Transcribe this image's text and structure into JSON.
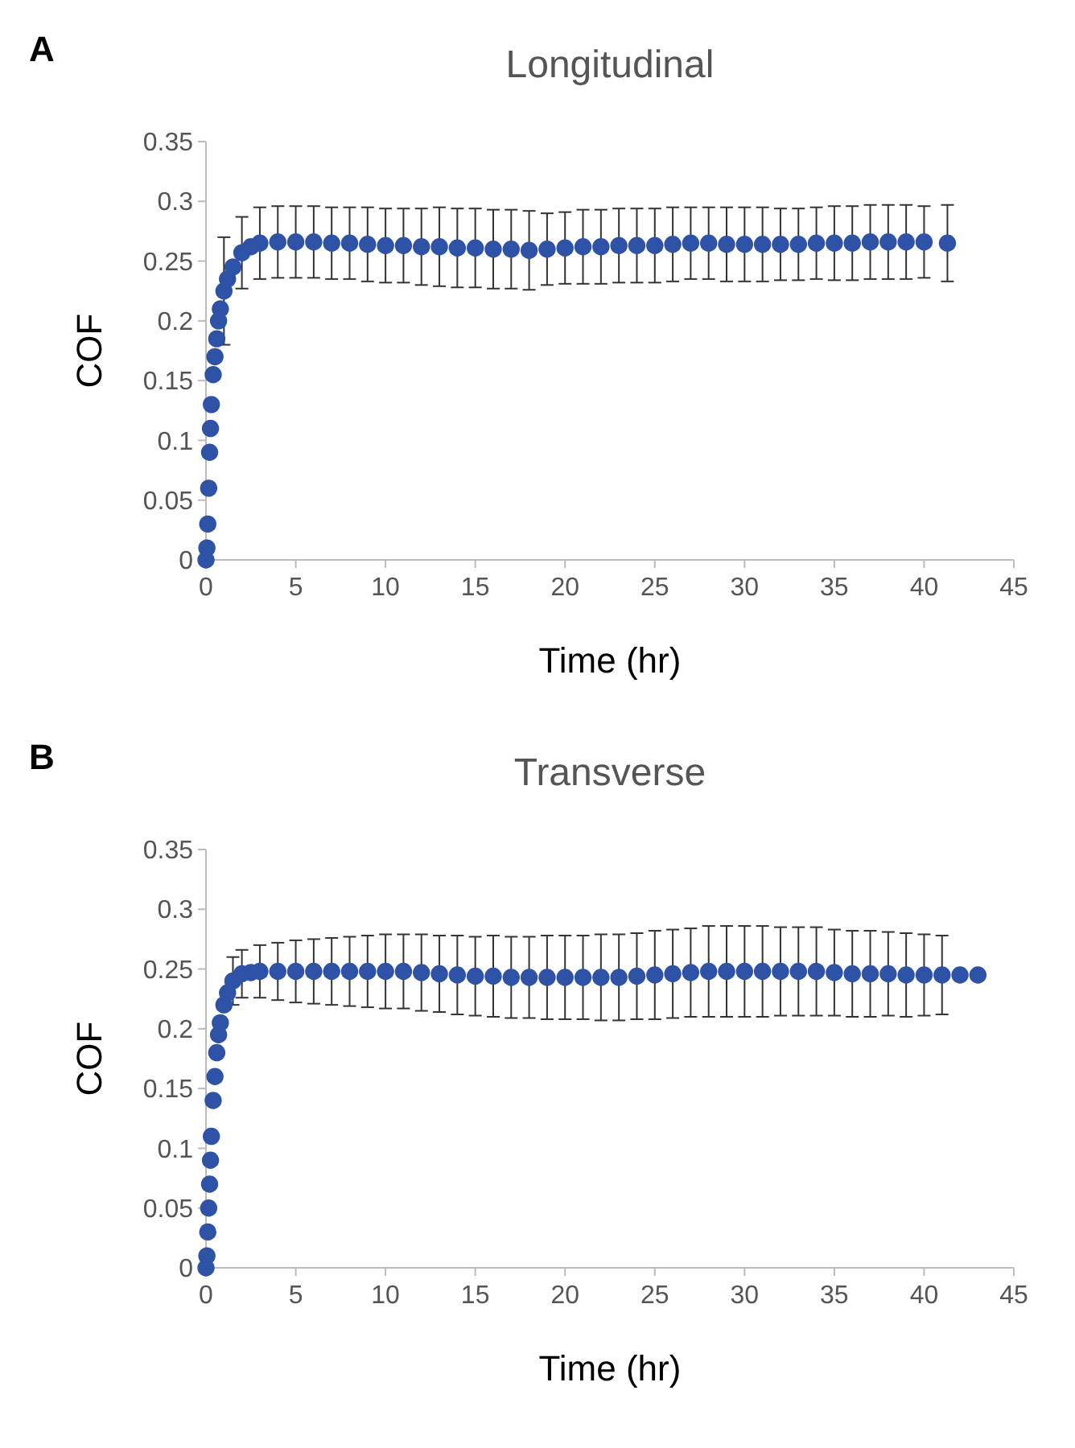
{
  "chart_data": [
    {
      "type": "scatter",
      "title": "Longitudinal",
      "xlabel": "Time (hr)",
      "ylabel": "COF",
      "annotations": [
        "A"
      ],
      "marker": "circle",
      "grid": false,
      "xlim": [
        0,
        45
      ],
      "ylim": [
        0,
        0.35
      ],
      "xticks": [
        0,
        5,
        10,
        15,
        20,
        25,
        30,
        35,
        40,
        45
      ],
      "yticks": [
        0,
        0.05,
        0.1,
        0.15,
        0.2,
        0.25,
        0.3,
        0.35
      ],
      "series": [
        {
          "color": "#2d52a6",
          "x": [
            0,
            0.05,
            0.1,
            0.15,
            0.2,
            0.25,
            0.3,
            0.4,
            0.5,
            0.6,
            0.7,
            0.8,
            1,
            1.2,
            1.5,
            2,
            2.5,
            3,
            4,
            5,
            6,
            7,
            8,
            9,
            10,
            11,
            12,
            13,
            14,
            15,
            16,
            17,
            18,
            19,
            20,
            21,
            22,
            23,
            24,
            25,
            26,
            27,
            28,
            29,
            30,
            31,
            32,
            33,
            34,
            35,
            36,
            37,
            38,
            39,
            40,
            41.3
          ],
          "values": [
            0,
            0.01,
            0.03,
            0.06,
            0.09,
            0.11,
            0.13,
            0.155,
            0.17,
            0.185,
            0.2,
            0.21,
            0.225,
            0.235,
            0.245,
            0.257,
            0.262,
            0.265,
            0.266,
            0.266,
            0.266,
            0.265,
            0.265,
            0.264,
            0.263,
            0.263,
            0.262,
            0.262,
            0.261,
            0.261,
            0.26,
            0.26,
            0.259,
            0.26,
            0.261,
            0.262,
            0.262,
            0.263,
            0.263,
            0.263,
            0.264,
            0.265,
            0.265,
            0.264,
            0.264,
            0.264,
            0.264,
            0.264,
            0.265,
            0.265,
            0.265,
            0.266,
            0.266,
            0.266,
            0.266,
            0.265
          ],
          "errors": [
            null,
            null,
            null,
            null,
            null,
            null,
            null,
            null,
            null,
            null,
            null,
            null,
            0.045,
            null,
            null,
            0.03,
            null,
            0.03,
            0.03,
            0.03,
            0.03,
            0.03,
            0.03,
            0.031,
            0.031,
            0.031,
            0.032,
            0.033,
            0.033,
            0.033,
            0.033,
            0.033,
            0.033,
            0.03,
            0.03,
            0.031,
            0.031,
            0.031,
            0.031,
            0.031,
            0.031,
            0.03,
            0.03,
            0.031,
            0.031,
            0.031,
            0.03,
            0.03,
            0.03,
            0.031,
            0.031,
            0.031,
            0.031,
            0.031,
            0.03,
            0.032
          ]
        }
      ]
    },
    {
      "type": "scatter",
      "title": "Transverse",
      "xlabel": "Time (hr)",
      "ylabel": "COF",
      "annotations": [
        "B"
      ],
      "marker": "circle",
      "grid": false,
      "xlim": [
        0,
        45
      ],
      "ylim": [
        0,
        0.35
      ],
      "xticks": [
        0,
        5,
        10,
        15,
        20,
        25,
        30,
        35,
        40,
        45
      ],
      "yticks": [
        0,
        0.05,
        0.1,
        0.15,
        0.2,
        0.25,
        0.3,
        0.35
      ],
      "series": [
        {
          "color": "#2d52a6",
          "x": [
            0,
            0.05,
            0.1,
            0.15,
            0.2,
            0.25,
            0.3,
            0.4,
            0.5,
            0.6,
            0.7,
            0.8,
            1,
            1.2,
            1.5,
            2,
            2.5,
            3,
            4,
            5,
            6,
            7,
            8,
            9,
            10,
            11,
            12,
            13,
            14,
            15,
            16,
            17,
            18,
            19,
            20,
            21,
            22,
            23,
            24,
            25,
            26,
            27,
            28,
            29,
            30,
            31,
            32,
            33,
            34,
            35,
            36,
            37,
            38,
            39,
            40,
            41,
            42,
            43
          ],
          "values": [
            0,
            0.01,
            0.03,
            0.05,
            0.07,
            0.09,
            0.11,
            0.14,
            0.16,
            0.18,
            0.195,
            0.205,
            0.22,
            0.23,
            0.24,
            0.246,
            0.247,
            0.248,
            0.248,
            0.248,
            0.248,
            0.248,
            0.248,
            0.248,
            0.248,
            0.248,
            0.247,
            0.246,
            0.245,
            0.244,
            0.244,
            0.243,
            0.243,
            0.243,
            0.243,
            0.243,
            0.243,
            0.243,
            0.244,
            0.245,
            0.246,
            0.247,
            0.248,
            0.248,
            0.248,
            0.248,
            0.248,
            0.248,
            0.248,
            0.247,
            0.246,
            0.246,
            0.246,
            0.245,
            0.245,
            0.245,
            0.245,
            0.245
          ],
          "errors": [
            null,
            null,
            null,
            null,
            null,
            null,
            null,
            null,
            null,
            null,
            null,
            null,
            null,
            null,
            0.02,
            0.02,
            null,
            0.022,
            0.024,
            0.026,
            0.027,
            0.028,
            0.029,
            0.03,
            0.031,
            0.031,
            0.032,
            0.032,
            0.033,
            0.033,
            0.034,
            0.034,
            0.034,
            0.035,
            0.035,
            0.035,
            0.036,
            0.036,
            0.036,
            0.037,
            0.037,
            0.037,
            0.038,
            0.038,
            0.038,
            0.038,
            0.037,
            0.037,
            0.037,
            0.036,
            0.036,
            0.036,
            0.035,
            0.035,
            0.034,
            0.033,
            null,
            null
          ]
        }
      ]
    }
  ]
}
